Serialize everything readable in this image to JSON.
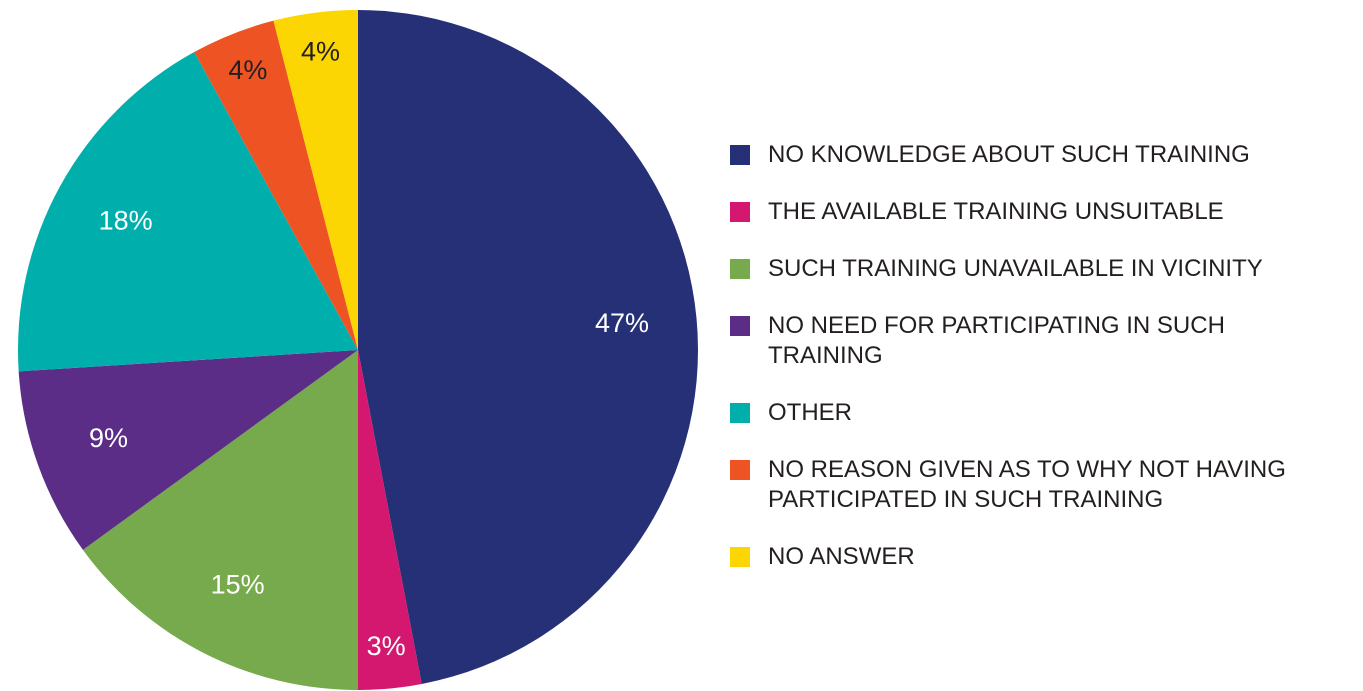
{
  "chart_data": {
    "type": "pie",
    "categories": [
      "NO KNOWLEDGE ABOUT SUCH TRAINING",
      "THE AVAILABLE TRAINING UNSUITABLE",
      "SUCH TRAINING UNAVAILABLE IN VICINITY",
      "NO NEED FOR PARTICIPATING IN SUCH TRAINING",
      "OTHER",
      "NO REASON GIVEN AS TO WHY NOT HAVING PARTICIPATED IN SUCH TRAINING",
      "NO ANSWER"
    ],
    "values": [
      47,
      3,
      15,
      9,
      18,
      4,
      4
    ],
    "value_labels": [
      "47%",
      "3%",
      "15%",
      "9%",
      "18%",
      "4%",
      "4%"
    ],
    "colors": [
      "#263077",
      "#d4186f",
      "#76aa4c",
      "#5b2d87",
      "#00afab",
      "#ee5423",
      "#fcd603"
    ],
    "label_colors": [
      "#ffffff",
      "#ffffff",
      "#ffffff",
      "#ffffff",
      "#ffffff",
      "#231f20",
      "#231f20"
    ],
    "legend": "right"
  }
}
